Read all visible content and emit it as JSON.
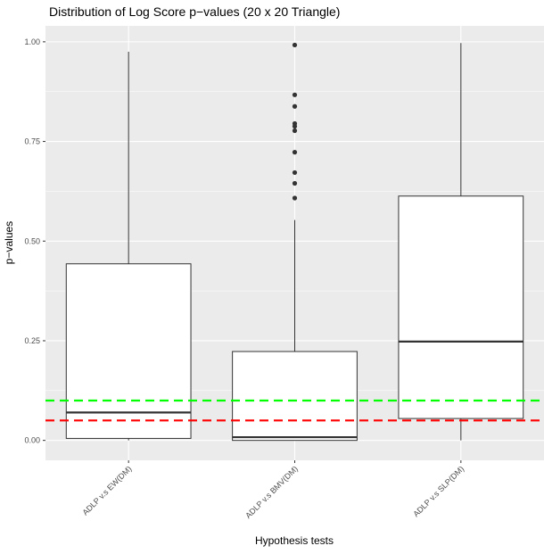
{
  "chart_data": {
    "type": "box",
    "title": "Distribution of Log Score p−values (20 x 20 Triangle)",
    "xlabel": "Hypothesis tests",
    "ylabel": "p−values",
    "ylim": [
      -0.05,
      1.04
    ],
    "yticks": [
      0.0,
      0.25,
      0.5,
      0.75,
      1.0
    ],
    "ytick_labels": [
      "0.00",
      "0.25",
      "0.50",
      "0.75",
      "1.00"
    ],
    "grid": true,
    "categories": [
      "ADLP v.s EW(DM)",
      "ADLP v.s BMV(DM)",
      "ADLP v.s SLP(DM)"
    ],
    "boxes": [
      {
        "category": "ADLP v.s EW(DM)",
        "min": 0.0,
        "q1": 0.005,
        "median": 0.07,
        "q3": 0.443,
        "max": 0.975,
        "outliers": []
      },
      {
        "category": "ADLP v.s BMV(DM)",
        "min": 0.0,
        "q1": 0.0,
        "median": 0.008,
        "q3": 0.223,
        "max": 0.553,
        "outliers": [
          0.608,
          0.645,
          0.672,
          0.723,
          0.777,
          0.788,
          0.795,
          0.838,
          0.867,
          0.992
        ]
      },
      {
        "category": "ADLP v.s SLP(DM)",
        "min": 0.0,
        "q1": 0.055,
        "median": 0.248,
        "q3": 0.613,
        "max": 0.997,
        "outliers": []
      }
    ],
    "reference_lines": [
      {
        "value": 0.1,
        "color": "#00ff00",
        "style": "dashed"
      },
      {
        "value": 0.05,
        "color": "#ff0000",
        "style": "dashed"
      }
    ],
    "colors": {
      "panel": "#ebebeb",
      "grid": "#ffffff",
      "box_fill": "#ffffff",
      "box_line": "#333333"
    }
  }
}
